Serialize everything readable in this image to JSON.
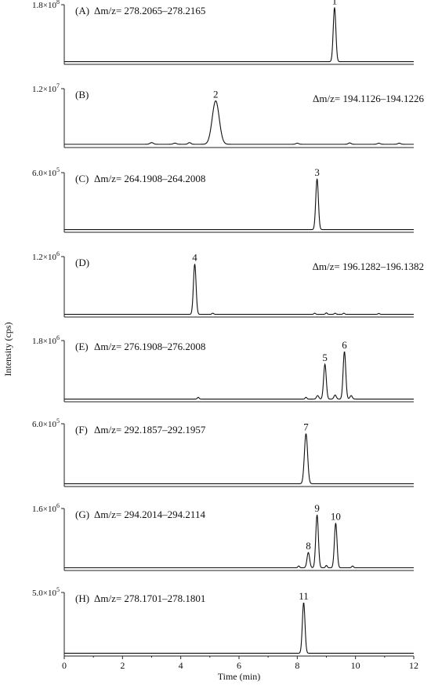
{
  "chart_data": {
    "type": "line",
    "ylabel": "Intensity (cps)",
    "xlabel": "Time (min)",
    "xlim": [
      0,
      12
    ],
    "xticks": [
      "0",
      "2",
      "4",
      "6",
      "8",
      "10",
      "12"
    ],
    "panels": [
      {
        "label": "(A)",
        "range": "Δm/z= 278.2065–278.2165",
        "range_side": "left",
        "ymax_mantissa": "1.8",
        "ymax_exp": "8",
        "baseline": 0.02,
        "peaks": [
          {
            "id": "1",
            "t": 9.28,
            "h": 0.96,
            "w": 0.045
          }
        ],
        "noise": []
      },
      {
        "label": "(B)",
        "range": "Δm/z= 194.1126–194.1226",
        "range_side": "right",
        "ymax_mantissa": "1.2",
        "ymax_exp": "7",
        "baseline": 0.03,
        "peaks": [
          {
            "id": "2",
            "t": 5.2,
            "h": 0.78,
            "w": 0.12
          }
        ],
        "noise": [
          {
            "t": 3.0,
            "h": 0.03,
            "w": 0.06
          },
          {
            "t": 3.8,
            "h": 0.02,
            "w": 0.06
          },
          {
            "t": 4.3,
            "h": 0.03,
            "w": 0.05
          },
          {
            "t": 8.0,
            "h": 0.02,
            "w": 0.05
          },
          {
            "t": 9.8,
            "h": 0.025,
            "w": 0.05
          },
          {
            "t": 10.8,
            "h": 0.02,
            "w": 0.05
          },
          {
            "t": 11.5,
            "h": 0.02,
            "w": 0.05
          }
        ]
      },
      {
        "label": "(C)",
        "range": "Δm/z= 264.1908–264.2008",
        "range_side": "left",
        "ymax_mantissa": "6.0",
        "ymax_exp": "5",
        "baseline": 0.02,
        "peaks": [
          {
            "id": "3",
            "t": 8.68,
            "h": 0.9,
            "w": 0.045
          }
        ],
        "noise": []
      },
      {
        "label": "(D)",
        "range": "Δm/z= 196.1282–196.1382",
        "range_side": "right",
        "ymax_mantissa": "1.2",
        "ymax_exp": "6",
        "baseline": 0.02,
        "peaks": [
          {
            "id": "4",
            "t": 4.48,
            "h": 0.88,
            "w": 0.045
          }
        ],
        "noise": [
          {
            "t": 5.1,
            "h": 0.02,
            "w": 0.03
          },
          {
            "t": 8.6,
            "h": 0.02,
            "w": 0.03
          },
          {
            "t": 9.0,
            "h": 0.025,
            "w": 0.03
          },
          {
            "t": 9.3,
            "h": 0.02,
            "w": 0.03
          },
          {
            "t": 9.6,
            "h": 0.02,
            "w": 0.03
          },
          {
            "t": 10.8,
            "h": 0.015,
            "w": 0.03
          }
        ]
      },
      {
        "label": "(E)",
        "range": "Δm/z= 276.1908–276.2008",
        "range_side": "left",
        "ymax_mantissa": "1.8",
        "ymax_exp": "6",
        "baseline": 0.02,
        "peaks": [
          {
            "id": "5",
            "t": 8.95,
            "h": 0.6,
            "w": 0.045
          },
          {
            "id": "6",
            "t": 9.62,
            "h": 0.82,
            "w": 0.045
          }
        ],
        "noise": [
          {
            "t": 4.6,
            "h": 0.03,
            "w": 0.03
          },
          {
            "t": 8.3,
            "h": 0.03,
            "w": 0.03
          },
          {
            "t": 8.7,
            "h": 0.06,
            "w": 0.04
          },
          {
            "t": 9.3,
            "h": 0.07,
            "w": 0.04
          },
          {
            "t": 9.85,
            "h": 0.06,
            "w": 0.04
          }
        ]
      },
      {
        "label": "(F)",
        "range": "Δm/z= 292.1857–292.1957",
        "range_side": "left",
        "ymax_mantissa": "6.0",
        "ymax_exp": "5",
        "baseline": 0.02,
        "peaks": [
          {
            "id": "7",
            "t": 8.3,
            "h": 0.84,
            "w": 0.055
          }
        ],
        "noise": []
      },
      {
        "label": "(G)",
        "range": "Δm/z= 294.2014–294.2114",
        "range_side": "left",
        "ymax_mantissa": "1.6",
        "ymax_exp": "6",
        "baseline": 0.02,
        "peaks": [
          {
            "id": "8",
            "t": 8.38,
            "h": 0.26,
            "w": 0.045
          },
          {
            "id": "9",
            "t": 8.68,
            "h": 0.9,
            "w": 0.045
          },
          {
            "id": "10",
            "t": 9.32,
            "h": 0.76,
            "w": 0.045
          }
        ],
        "noise": [
          {
            "t": 8.05,
            "h": 0.03,
            "w": 0.03
          },
          {
            "t": 9.0,
            "h": 0.04,
            "w": 0.03
          },
          {
            "t": 9.9,
            "h": 0.03,
            "w": 0.03
          }
        ]
      },
      {
        "label": "(H)",
        "range": "Δm/z= 278.1701–278.1801",
        "range_side": "left",
        "ymax_mantissa": "5.0",
        "ymax_exp": "5",
        "baseline": 0.02,
        "peaks": [
          {
            "id": "11",
            "t": 8.22,
            "h": 0.84,
            "w": 0.045
          }
        ],
        "noise": []
      }
    ]
  }
}
